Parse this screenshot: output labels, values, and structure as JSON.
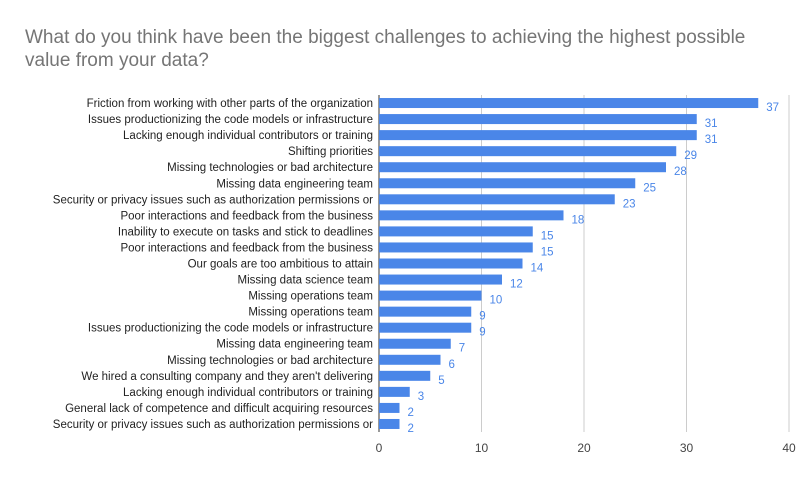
{
  "chart_data": {
    "type": "bar",
    "orientation": "horizontal",
    "title": "What do you think have been the biggest challenges to achieving the highest possible value from your data?",
    "xlabel": "",
    "ylabel": "",
    "xlim": [
      0,
      40
    ],
    "x_ticks": [
      "0",
      "10",
      "20",
      "30",
      "40"
    ],
    "grid": true,
    "legend": "none",
    "bar_color": "#4a86e8",
    "label_color": "#4a86e8",
    "categories": [
      "Friction from working with other parts of the organization",
      "Issues productionizing the code models or infrastructure",
      "Lacking enough individual contributors or training",
      "Shifting priorities",
      "Missing technologies or bad architecture",
      "Missing data engineering team",
      "Security or privacy issues such as authorization permissions or",
      "Poor interactions and feedback from the business",
      "Inability to execute on tasks and stick to deadlines",
      "Poor interactions and feedback from the business",
      "Our goals are too ambitious to attain",
      "Missing data science team",
      "Missing operations team",
      "Missing operations team",
      "Issues productionizing the code models or infrastructure",
      "Missing data engineering team",
      "Missing technologies or bad architecture",
      "We hired a consulting company and they aren't delivering",
      "Lacking enough individual contributors or training",
      "General lack of competence and difficult acquiring resources",
      "Security or privacy issues such as authorization permissions or"
    ],
    "values": [
      37,
      31,
      31,
      29,
      28,
      25,
      23,
      18,
      15,
      15,
      14,
      12,
      10,
      9,
      9,
      7,
      6,
      5,
      3,
      2,
      2
    ]
  }
}
